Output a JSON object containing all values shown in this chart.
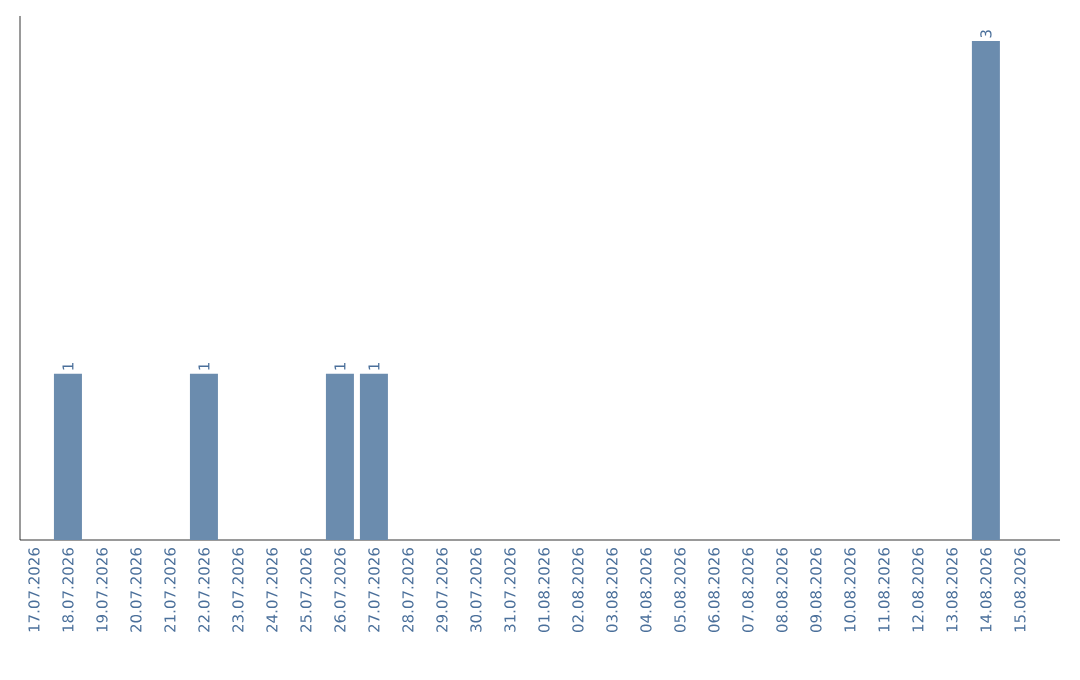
{
  "chart_data": {
    "type": "bar",
    "categories": [
      "17.07.2026",
      "18.07.2026",
      "19.07.2026",
      "20.07.2026",
      "21.07.2026",
      "22.07.2026",
      "23.07.2026",
      "24.07.2026",
      "25.07.2026",
      "26.07.2026",
      "27.07.2026",
      "28.07.2026",
      "29.07.2026",
      "30.07.2026",
      "31.07.2026",
      "01.08.2026",
      "02.08.2026",
      "03.08.2026",
      "04.08.2026",
      "05.08.2026",
      "06.08.2026",
      "07.08.2026",
      "08.08.2026",
      "09.08.2026",
      "10.08.2026",
      "11.08.2026",
      "12.08.2026",
      "13.08.2026",
      "14.08.2026",
      "15.08.2026"
    ],
    "values": [
      0,
      1,
      0,
      0,
      0,
      1,
      0,
      0,
      0,
      1,
      1,
      0,
      0,
      0,
      0,
      0,
      0,
      0,
      0,
      0,
      0,
      0,
      0,
      0,
      0,
      0,
      0,
      0,
      3,
      0
    ],
    "value_labels": [
      null,
      "1",
      null,
      null,
      null,
      "1",
      null,
      null,
      null,
      "1",
      "1",
      null,
      null,
      null,
      null,
      null,
      null,
      null,
      null,
      null,
      null,
      null,
      null,
      null,
      null,
      null,
      null,
      null,
      "3",
      null
    ],
    "color": "#6b8cae",
    "ylim": [
      0,
      3.15
    ]
  }
}
